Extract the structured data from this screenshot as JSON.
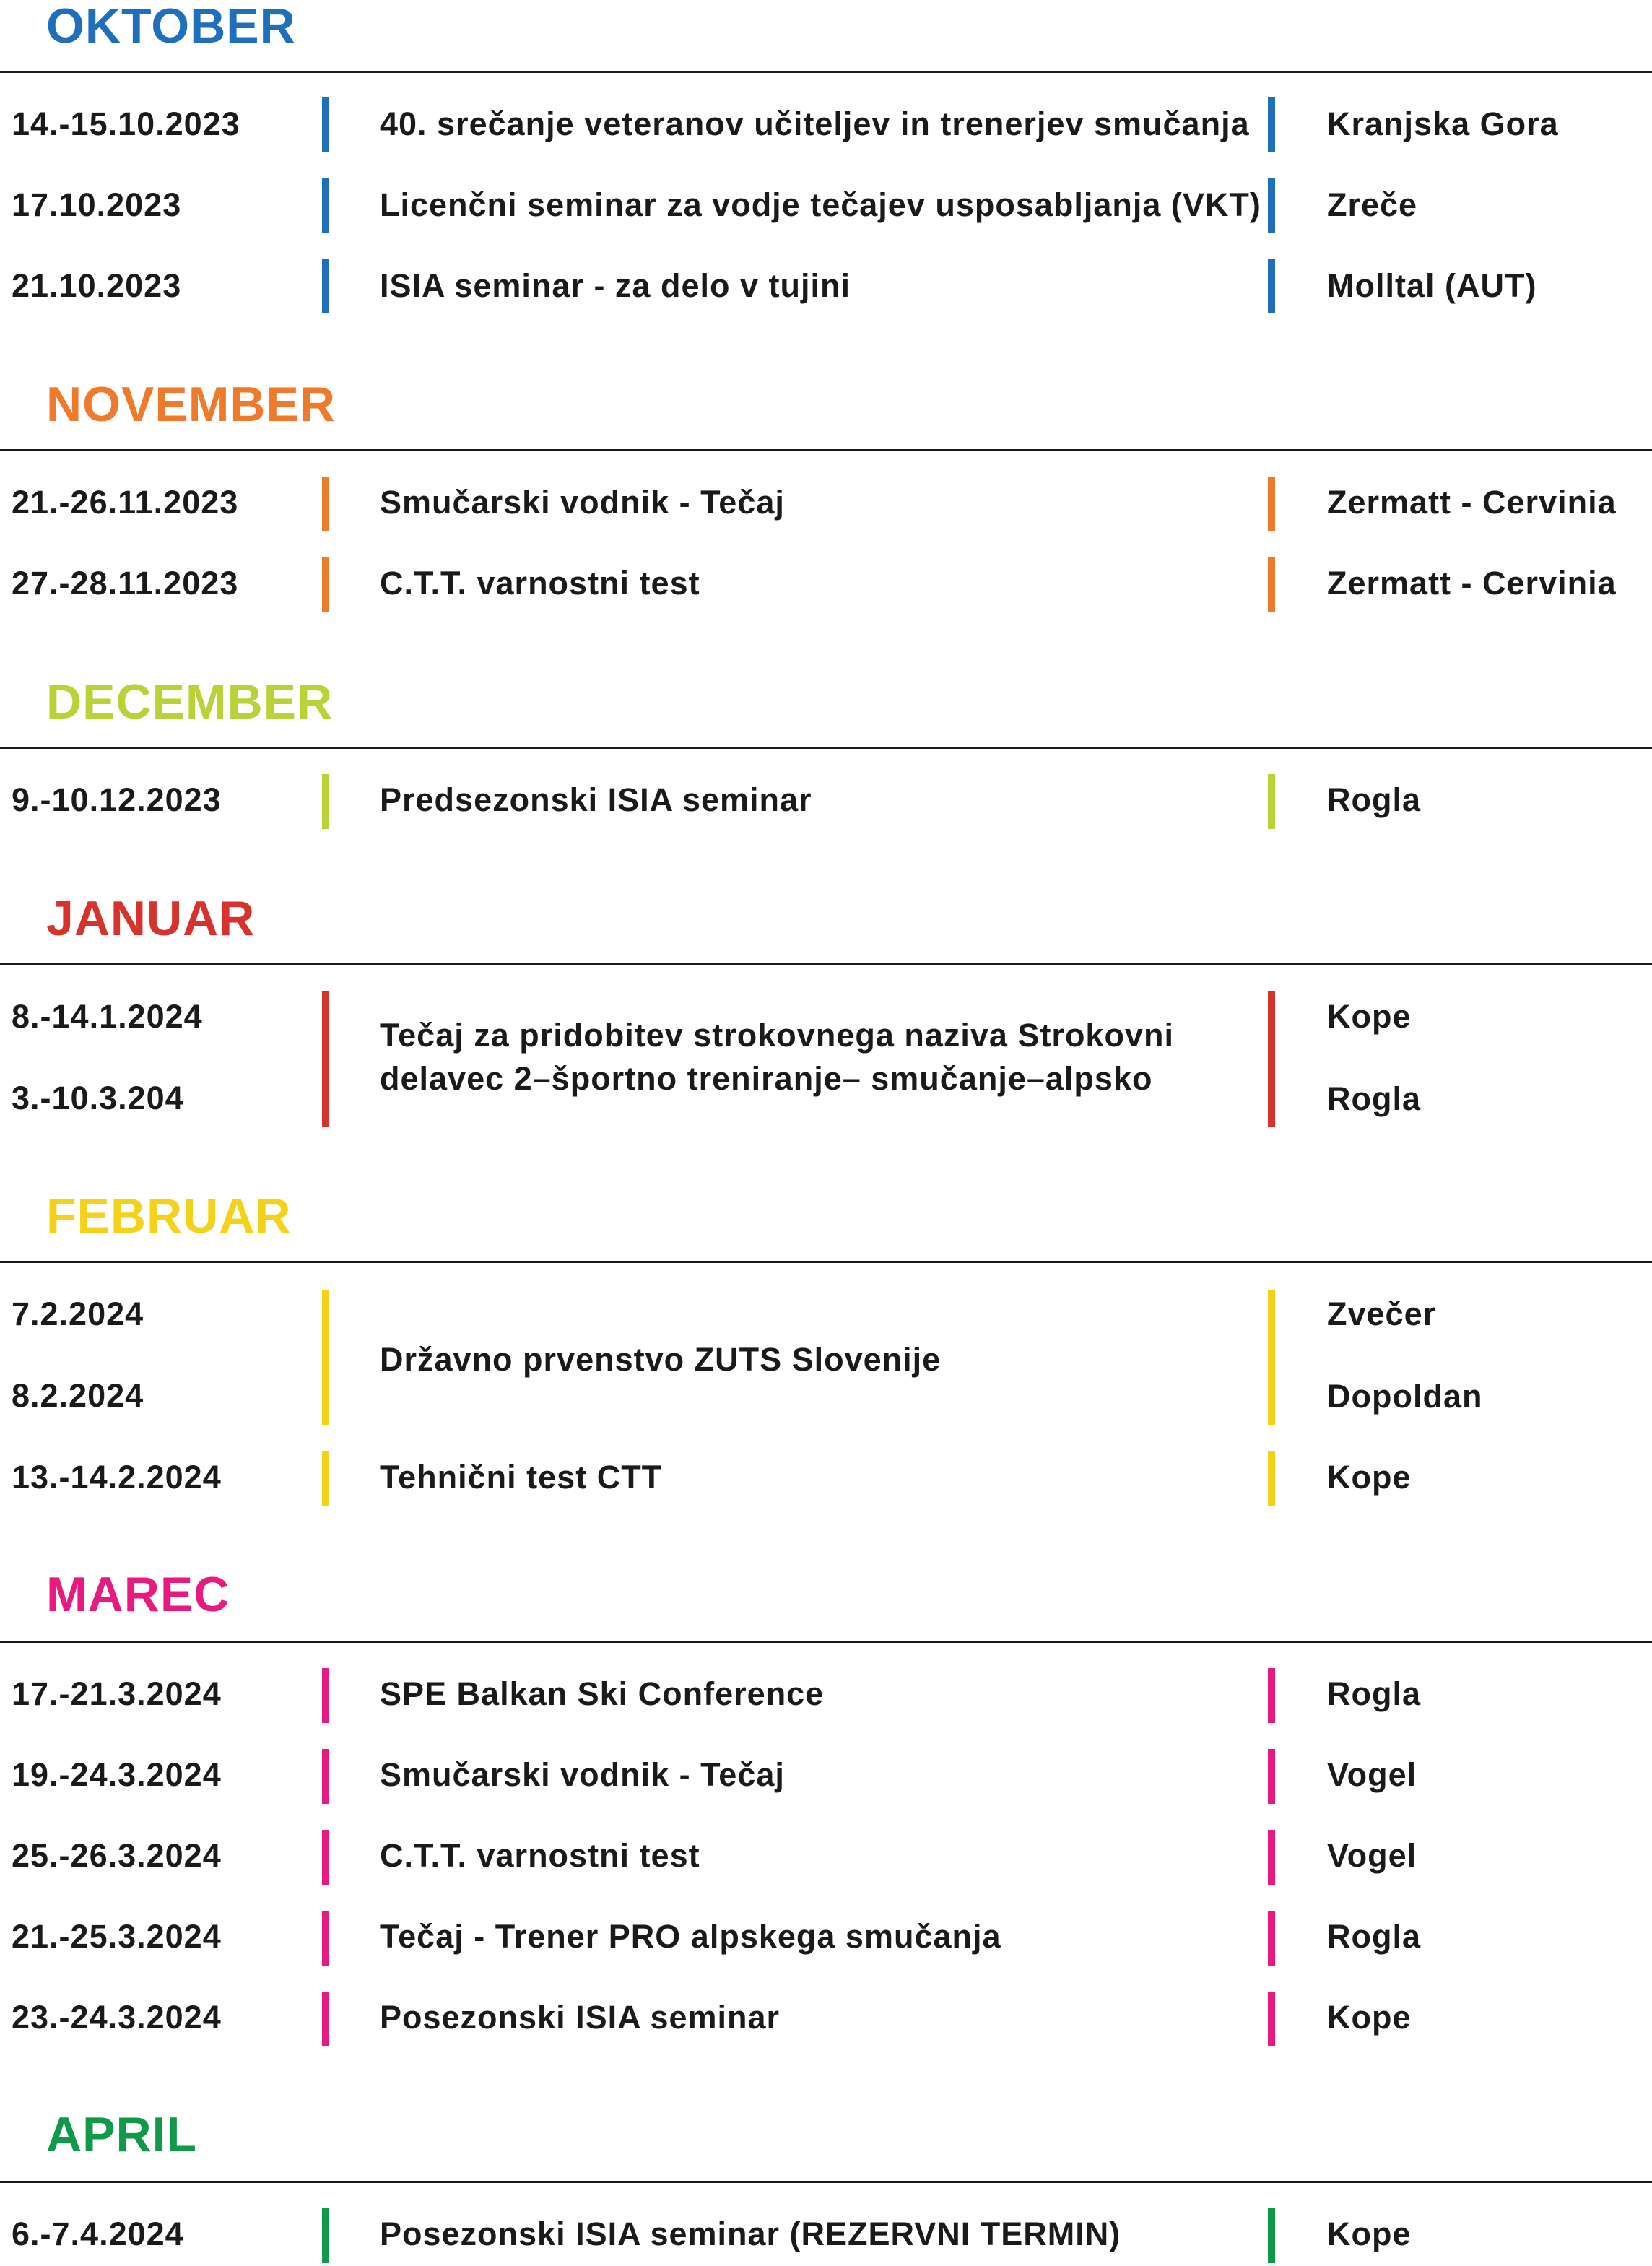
{
  "colors": {
    "oktober": "#1f6fbd",
    "november": "#ee7a2c",
    "december": "#b7d336",
    "januar": "#d6332c",
    "februar": "#f5d21a",
    "marec": "#e8197f",
    "april": "#0e9a49"
  },
  "oktober": {
    "title": "OKTOBER",
    "rows": [
      {
        "date": "14.-15.10.2023",
        "event": "40. srečanje veteranov učiteljev in trenerjev smučanja",
        "place": "Kranjska Gora"
      },
      {
        "date": "17.10.2023",
        "event": "Licenčni seminar za vodje tečajev usposabljanja (VKT)",
        "place": "Zreče"
      },
      {
        "date": "21.10.2023",
        "event": "ISIA seminar - za delo v tujini",
        "place": "Molltal (AUT)"
      }
    ]
  },
  "november": {
    "title": "NOVEMBER",
    "rows": [
      {
        "date": "21.-26.11.2023",
        "event": "Smučarski vodnik - Tečaj",
        "place": "Zermatt - Cervinia"
      },
      {
        "date": "27.-28.11.2023",
        "event": "C.T.T. varnostni test",
        "place": "Zermatt - Cervinia"
      }
    ]
  },
  "december": {
    "title": "DECEMBER",
    "rows": [
      {
        "date": "9.-10.12.2023",
        "event": "Predsezonski ISIA seminar",
        "place": "Rogla"
      }
    ]
  },
  "januar": {
    "title": "JANUAR",
    "date1": "8.-14.1.2024",
    "date2": "3.-10.3.204",
    "event": "Tečaj za pridobitev strokovnega naziva Strokovni delavec 2–športno treniranje– smučanje–alpsko",
    "place1": "Kope",
    "place2": "Rogla"
  },
  "februar": {
    "title": "FEBRUAR",
    "date1": "7.2.2024",
    "date2": "8.2.2024",
    "event": "Državno prvenstvo ZUTS Slovenije",
    "place1": "Zvečer",
    "place2": "Dopoldan",
    "rows": [
      {
        "date": "13.-14.2.2024",
        "event": "Tehnični test CTT",
        "place": "Kope"
      }
    ]
  },
  "marec": {
    "title": "MAREC",
    "rows": [
      {
        "date": "17.-21.3.2024",
        "event": "SPE Balkan Ski Conference",
        "place": "Rogla"
      },
      {
        "date": "19.-24.3.2024",
        "event": "Smučarski vodnik - Tečaj",
        "place": "Vogel"
      },
      {
        "date": "25.-26.3.2024",
        "event": "C.T.T. varnostni test",
        "place": "Vogel"
      },
      {
        "date": "21.-25.3.2024",
        "event": "Tečaj - Trener PRO alpskega smučanja",
        "place": "Rogla"
      },
      {
        "date": "23.-24.3.2024",
        "event": "Posezonski ISIA seminar",
        "place": "Kope"
      }
    ]
  },
  "april": {
    "title": "APRIL",
    "rows": [
      {
        "date": "6.-7.4.2024",
        "event": "Posezonski ISIA seminar (REZERVNI TERMIN)",
        "place": "Kope"
      }
    ]
  }
}
